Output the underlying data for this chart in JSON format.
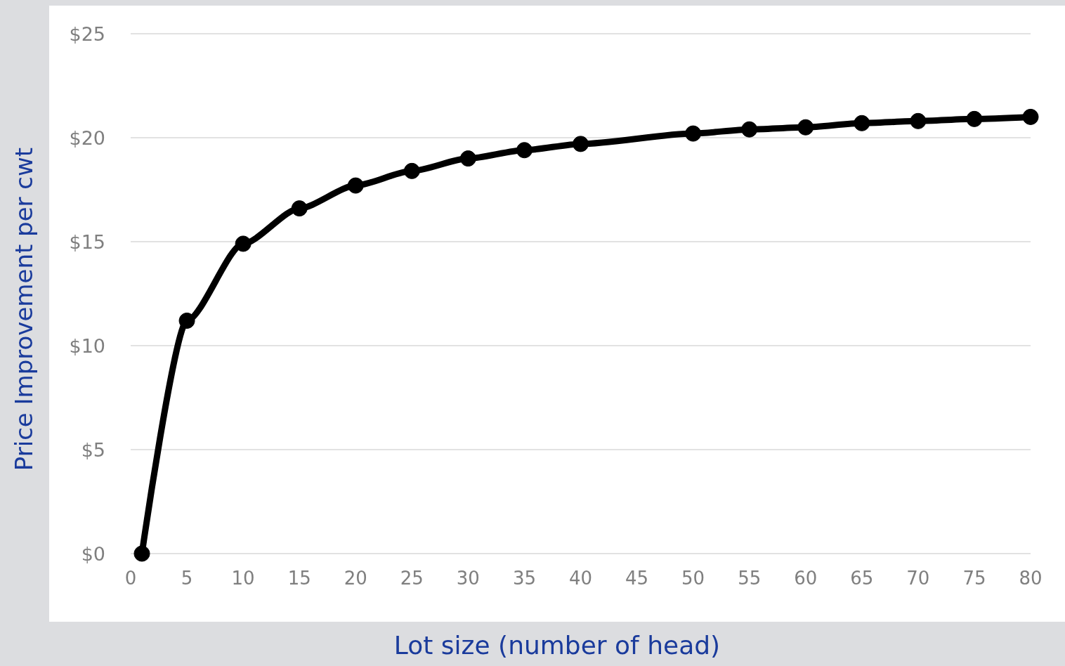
{
  "chart_data": {
    "type": "line",
    "xlabel": "Lot size (number of head)",
    "ylabel": "Price Improvement per cwt",
    "x": [
      1,
      5,
      10,
      15,
      20,
      25,
      30,
      35,
      40,
      50,
      55,
      60,
      65,
      70,
      75,
      80
    ],
    "series": [
      {
        "color": "#000000",
        "values": [
          0,
          11.2,
          14.9,
          16.6,
          17.7,
          18.4,
          19.0,
          19.4,
          19.7,
          20.2,
          20.4,
          20.5,
          20.7,
          20.8,
          20.9,
          21.0
        ]
      }
    ],
    "xlim": [
      0,
      80
    ],
    "xticks": [
      0,
      5,
      10,
      15,
      20,
      25,
      30,
      35,
      40,
      45,
      50,
      55,
      60,
      65,
      70,
      75,
      80
    ],
    "ylim": [
      0,
      25
    ],
    "yticks": [
      {
        "value": 0,
        "label": "$0"
      },
      {
        "value": 5,
        "label": "$5"
      },
      {
        "value": 10,
        "label": "$10"
      },
      {
        "value": 15,
        "label": "$15"
      },
      {
        "value": 20,
        "label": "$20"
      },
      {
        "value": 25,
        "label": "$25"
      }
    ],
    "grid": "y",
    "marker": "circle",
    "line_style": "solid"
  }
}
